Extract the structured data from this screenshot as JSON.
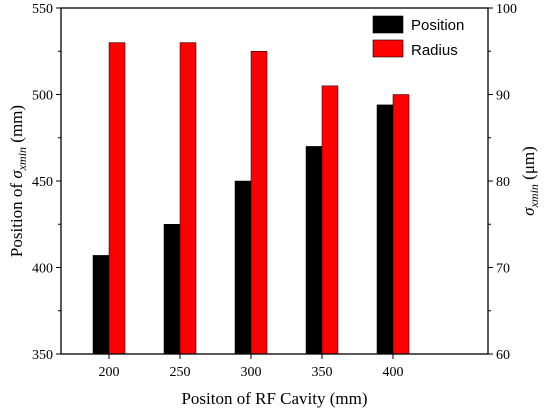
{
  "chart_data": {
    "type": "bar",
    "categories": [
      "200",
      "250",
      "300",
      "350",
      "400"
    ],
    "x_axis": {
      "label": "Positon of RF Cavity (mm)",
      "tick_labels": [
        "200",
        "250",
        "300",
        "350",
        "400"
      ]
    },
    "y_left": {
      "label_prefix": "Position of ",
      "label_sigma": "σ",
      "label_sub": "xmin",
      "label_suffix": " (mm)",
      "range": [
        350,
        550
      ],
      "ticks": [
        350,
        400,
        450,
        500,
        550
      ]
    },
    "y_right": {
      "label_sigma": "σ",
      "label_sub": "xmin",
      "label_suffix": " (μm)",
      "range": [
        60,
        100
      ],
      "ticks": [
        60,
        70,
        80,
        90,
        100
      ]
    },
    "series": [
      {
        "name": "Position",
        "axis": "left",
        "color": "#000000",
        "values": [
          407,
          425,
          450,
          470,
          494
        ]
      },
      {
        "name": "Radius",
        "axis": "right",
        "color": "#ff0000",
        "values": [
          96,
          96,
          95,
          91,
          90
        ]
      }
    ],
    "legend_position": "top-right",
    "grid": false
  }
}
